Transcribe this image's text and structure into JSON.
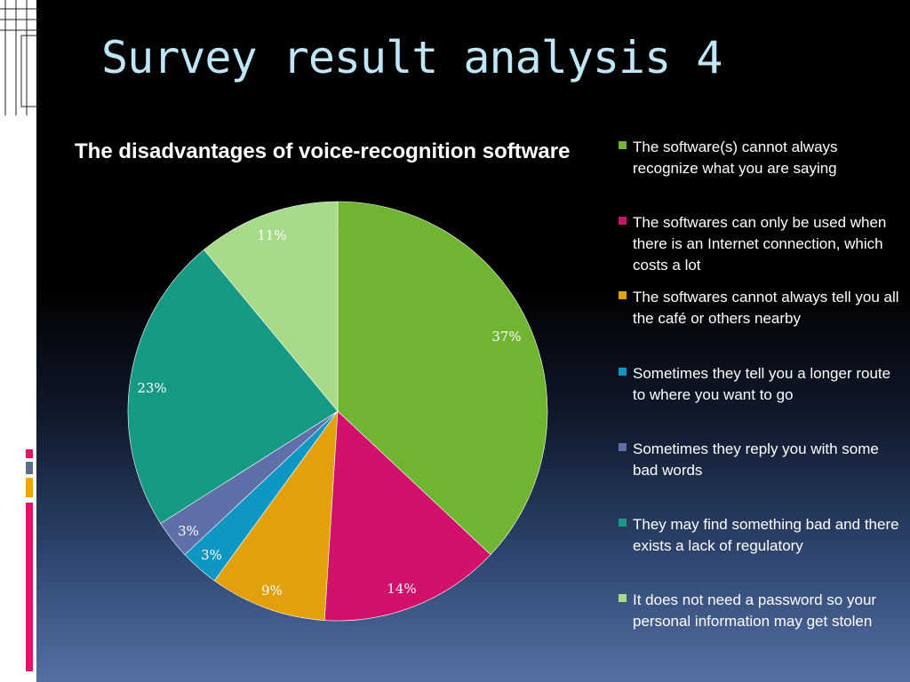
{
  "slide": {
    "title": "Survey result analysis 4",
    "accent_colors": [
      "#e0136b",
      "#5a6e8a",
      "#f0a800",
      "#e0136b"
    ]
  },
  "chart_data": {
    "type": "pie",
    "title": "The disadvantages of voice-recognition software",
    "legend_position": "right",
    "slices": [
      {
        "label": "The software(s) cannot always recognize what you are saying",
        "value": 37,
        "value_label": "37%",
        "color": "#70b531"
      },
      {
        "label": "The softwares can only be used when there is an Internet connection, which costs a lot",
        "value": 14,
        "value_label": "14%",
        "color": "#d2126a"
      },
      {
        "label": "The softwares cannot always tell you all the café or others nearby",
        "value": 9,
        "value_label": "9%",
        "color": "#e3a00d"
      },
      {
        "label": "Sometimes they tell you a longer route to where you want to go",
        "value": 3,
        "value_label": "3%",
        "color": "#0f97c4"
      },
      {
        "label": "Sometimes they reply you with some bad words",
        "value": 3,
        "value_label": "3%",
        "color": "#5f6fa8"
      },
      {
        "label": "They may find something bad and there exists a lack of regulatory",
        "value": 23,
        "value_label": "23%",
        "color": "#169a83"
      },
      {
        "label": "It does not need a password so your personal information may get stolen",
        "value": 11,
        "value_label": "11%",
        "color": "#a7db8a"
      }
    ]
  }
}
